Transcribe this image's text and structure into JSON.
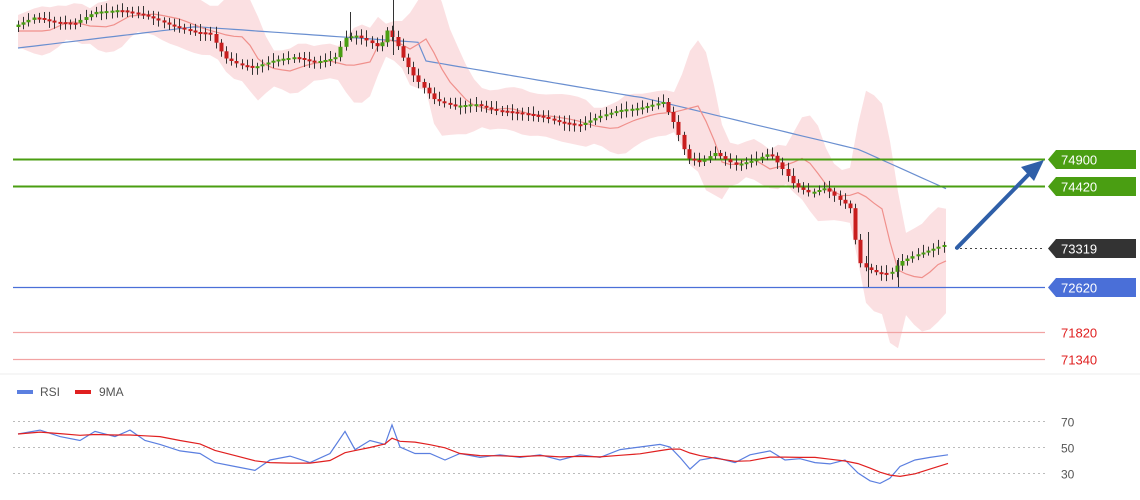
{
  "chart_data": [
    {
      "type": "candlestick",
      "overlays": [
        "bollinger-band",
        "moving-average-fast",
        "moving-average-slow"
      ],
      "levels": [
        {
          "label": "74900",
          "value": 74900,
          "kind": "resistance",
          "color": "#4a9e12"
        },
        {
          "label": "74420",
          "value": 74420,
          "kind": "resistance",
          "color": "#4a9e12"
        },
        {
          "label": "73319",
          "value": 73319,
          "kind": "current-price",
          "color": "#333333"
        },
        {
          "label": "72620",
          "value": 72620,
          "kind": "support",
          "color": "#4a6fd8"
        },
        {
          "label": "71820",
          "value": 71820,
          "kind": "support",
          "color": "#e02020"
        },
        {
          "label": "71340",
          "value": 71340,
          "kind": "support",
          "color": "#e02020"
        }
      ],
      "forecast_arrow": {
        "from": 73319,
        "to": 74900,
        "direction": "up",
        "color": "#2f5fa8"
      },
      "colors": {
        "bull": "#4a9e12",
        "bear": "#c81e1e",
        "band": "#fadadd",
        "ma_fast": "#f0908c",
        "ma_slow": "#6a8fd0"
      }
    },
    {
      "type": "line",
      "series": [
        {
          "name": "RSI",
          "color": "#5b7fe0"
        },
        {
          "name": "9MA",
          "color": "#e02020"
        }
      ],
      "y_ticks": [
        "70",
        "50",
        "30"
      ],
      "ylim": [
        18,
        82
      ]
    }
  ]
}
